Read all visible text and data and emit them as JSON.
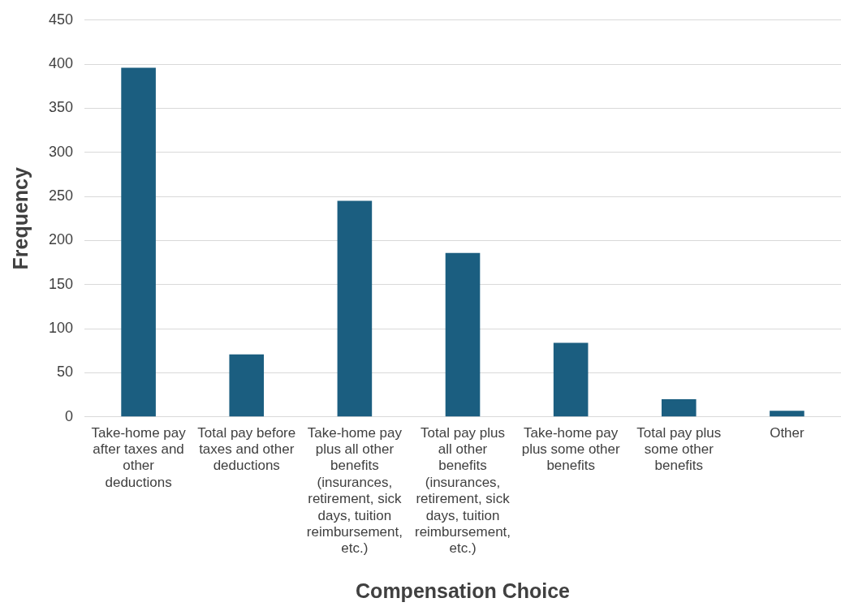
{
  "chart_data": {
    "type": "bar",
    "xlabel": "Compensation Choice",
    "ylabel": "Frequency",
    "categories": [
      "Take-home pay after taxes and other deductions",
      "Total pay before taxes and other deductions",
      "Take-home pay plus all other benefits (insurances, retirement, sick days, tuition reimbursement, etc.)",
      "Total pay plus all other benefits (insurances, retirement, sick days, tuition reimbursement, etc.)",
      "Take-home pay plus some other benefits",
      "Total pay plus some other benefits",
      "Other"
    ],
    "values": [
      396,
      71,
      245,
      186,
      84,
      20,
      7
    ],
    "color": "#1b5e80",
    "ylim": [
      0,
      450
    ],
    "yticks": [
      0,
      50,
      100,
      150,
      200,
      250,
      300,
      350,
      400,
      450
    ],
    "grid": "y",
    "legend": false
  }
}
